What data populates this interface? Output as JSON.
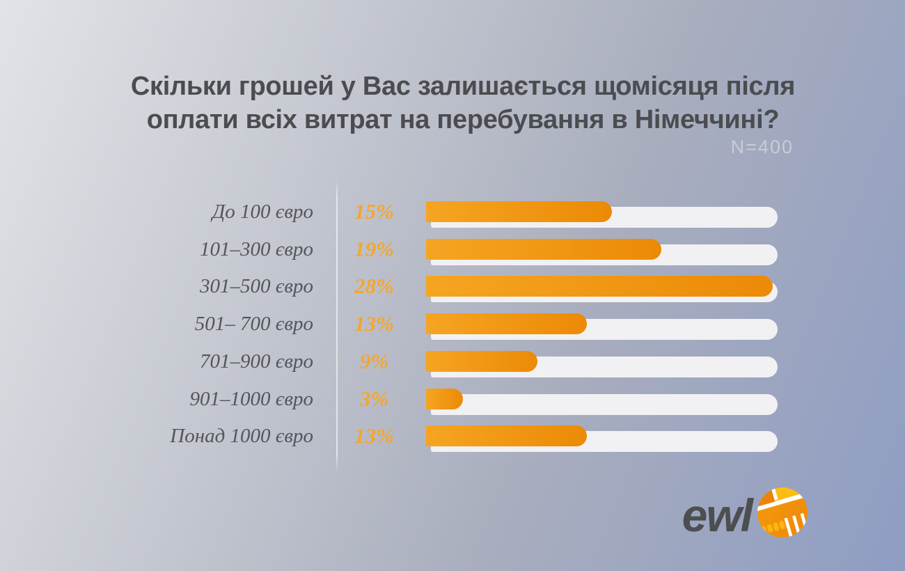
{
  "title": "Скільки грошей у Вас залишається щомісяця після\nоплати всіх витрат на перебування в Німеччині?",
  "sample_size_label": "N=400",
  "chart_data": {
    "type": "bar",
    "orientation": "horizontal",
    "title": "Скільки грошей у Вас залишається щомісяця після оплати всіх витрат на перебування в Німеччині?",
    "subtitle": "N=400",
    "categories": [
      "До 100 євро",
      "101–300 євро",
      "301–500 євро",
      "501– 700 євро",
      "701–900 євро",
      "901–1000 євро",
      "Понад 1000 євро"
    ],
    "values": [
      15,
      19,
      28,
      13,
      9,
      3,
      13
    ],
    "value_labels": [
      "15%",
      "19%",
      "28%",
      "13%",
      "9%",
      "3%",
      "13%"
    ],
    "unit": "%",
    "xlim": [
      0,
      28
    ],
    "grid": false,
    "legend": false,
    "value_label_position": "left-of-bar"
  },
  "logo": {
    "text": "ewl",
    "icon": "handshake-icon"
  },
  "colors": {
    "accent_orange": "#F6A62B",
    "bar_gradient_start": "#F5A522",
    "bar_gradient_end": "#EC8A06",
    "bar_track": "#F1F1F3",
    "title_text": "#4B4C4F",
    "label_text": "#54555A",
    "sample_size_text": "#DEDFDB",
    "logo_dark": "#4D4E50",
    "logo_yellow": "#FBB60F",
    "logo_orange": "#EF8A0A",
    "background_light": "#E1E3E7",
    "background_dark": "#8F9DC3"
  }
}
